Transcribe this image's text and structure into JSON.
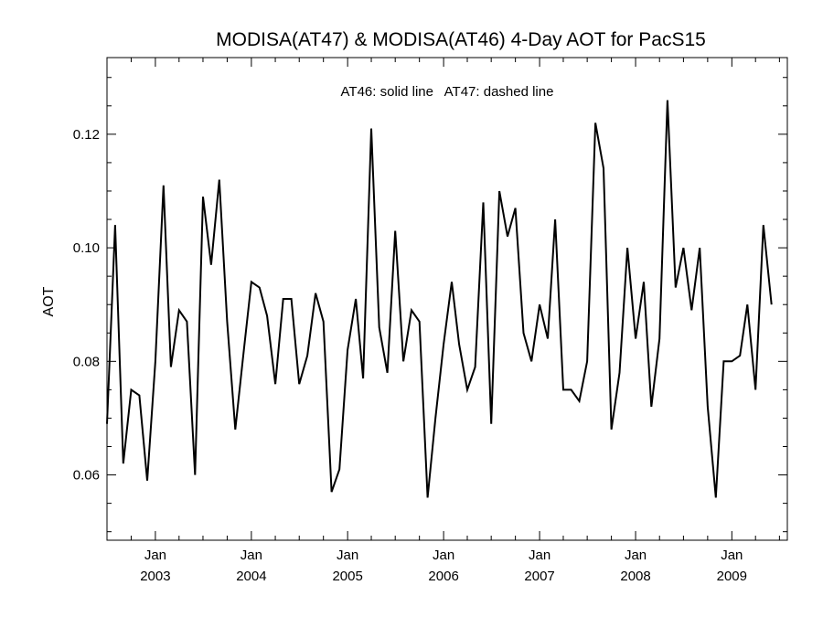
{
  "chart_data": {
    "type": "line",
    "title": "MODISA(AT47) & MODISA(AT46) 4-Day AOT for PacS15",
    "annotation": "AT46: solid line   AT47: dashed line",
    "xlabel": "",
    "ylabel": "AOT",
    "xlim": [
      "2002-07-01",
      "2009-07-31"
    ],
    "ylim": [
      0.0485,
      0.1335
    ],
    "yticks": [
      0.06,
      0.08,
      0.1,
      0.12
    ],
    "ytick_labels": [
      "0.06",
      "0.08",
      "0.10",
      "0.12"
    ],
    "xticks": [
      "2003-01-01",
      "2004-01-01",
      "2005-01-01",
      "2006-01-01",
      "2007-01-01",
      "2008-01-01",
      "2009-01-01"
    ],
    "xtick_labels": [
      {
        "month": "Jan",
        "year": "2003"
      },
      {
        "month": "Jan",
        "year": "2004"
      },
      {
        "month": "Jan",
        "year": "2005"
      },
      {
        "month": "Jan",
        "year": "2006"
      },
      {
        "month": "Jan",
        "year": "2007"
      },
      {
        "month": "Jan",
        "year": "2008"
      },
      {
        "month": "Jan",
        "year": "2009"
      }
    ],
    "grid": false,
    "series": [
      {
        "style": "solid",
        "color": "#000000",
        "points": [
          [
            "2002-07-01",
            0.069
          ],
          [
            "2002-08-01",
            0.104
          ],
          [
            "2002-09-01",
            0.062
          ],
          [
            "2002-10-01",
            0.075
          ],
          [
            "2002-11-01",
            0.074
          ],
          [
            "2002-12-01",
            0.059
          ],
          [
            "2003-01-01",
            0.08
          ],
          [
            "2003-02-01",
            0.111
          ],
          [
            "2003-03-01",
            0.079
          ],
          [
            "2003-04-01",
            0.089
          ],
          [
            "2003-05-01",
            0.087
          ],
          [
            "2003-06-01",
            0.06
          ],
          [
            "2003-07-01",
            0.109
          ],
          [
            "2003-08-01",
            0.097
          ],
          [
            "2003-09-01",
            0.112
          ],
          [
            "2003-10-01",
            0.087
          ],
          [
            "2003-11-01",
            0.068
          ],
          [
            "2003-12-01",
            0.081
          ],
          [
            "2004-01-01",
            0.094
          ],
          [
            "2004-02-01",
            0.093
          ],
          [
            "2004-03-01",
            0.088
          ],
          [
            "2004-04-01",
            0.076
          ],
          [
            "2004-05-01",
            0.091
          ],
          [
            "2004-06-01",
            0.091
          ],
          [
            "2004-07-01",
            0.076
          ],
          [
            "2004-08-01",
            0.081
          ],
          [
            "2004-09-01",
            0.092
          ],
          [
            "2004-10-01",
            0.087
          ],
          [
            "2004-11-01",
            0.057
          ],
          [
            "2004-12-01",
            0.061
          ],
          [
            "2005-01-01",
            0.082
          ],
          [
            "2005-02-01",
            0.091
          ],
          [
            "2005-03-01",
            0.077
          ],
          [
            "2005-04-01",
            0.121
          ],
          [
            "2005-05-01",
            0.086
          ],
          [
            "2005-06-01",
            0.078
          ],
          [
            "2005-07-01",
            0.103
          ],
          [
            "2005-08-01",
            0.08
          ],
          [
            "2005-09-01",
            0.089
          ],
          [
            "2005-10-01",
            0.087
          ],
          [
            "2005-11-01",
            0.056
          ],
          [
            "2005-12-01",
            0.07
          ],
          [
            "2006-01-01",
            0.083
          ],
          [
            "2006-02-01",
            0.094
          ],
          [
            "2006-03-01",
            0.083
          ],
          [
            "2006-04-01",
            0.075
          ],
          [
            "2006-05-01",
            0.079
          ],
          [
            "2006-06-01",
            0.108
          ],
          [
            "2006-07-01",
            0.069
          ],
          [
            "2006-08-01",
            0.11
          ],
          [
            "2006-09-01",
            0.102
          ],
          [
            "2006-10-01",
            0.107
          ],
          [
            "2006-11-01",
            0.085
          ],
          [
            "2006-12-01",
            0.08
          ],
          [
            "2007-01-01",
            0.09
          ],
          [
            "2007-02-01",
            0.084
          ],
          [
            "2007-03-01",
            0.105
          ],
          [
            "2007-04-01",
            0.075
          ],
          [
            "2007-05-01",
            0.075
          ],
          [
            "2007-06-01",
            0.073
          ],
          [
            "2007-07-01",
            0.08
          ],
          [
            "2007-08-01",
            0.122
          ],
          [
            "2007-09-01",
            0.114
          ],
          [
            "2007-10-01",
            0.068
          ],
          [
            "2007-11-01",
            0.078
          ],
          [
            "2007-12-01",
            0.1
          ],
          [
            "2008-01-01",
            0.084
          ],
          [
            "2008-02-01",
            0.094
          ],
          [
            "2008-03-01",
            0.072
          ],
          [
            "2008-04-01",
            0.084
          ],
          [
            "2008-05-01",
            0.126
          ],
          [
            "2008-06-01",
            0.093
          ],
          [
            "2008-07-01",
            0.1
          ],
          [
            "2008-08-01",
            0.089
          ],
          [
            "2008-09-01",
            0.1
          ],
          [
            "2008-10-01",
            0.072
          ],
          [
            "2008-11-01",
            0.056
          ],
          [
            "2008-12-01",
            0.08
          ],
          [
            "2009-01-01",
            0.08
          ],
          [
            "2009-02-01",
            0.081
          ],
          [
            "2009-03-01",
            0.09
          ],
          [
            "2009-04-01",
            0.075
          ],
          [
            "2009-05-01",
            0.104
          ],
          [
            "2009-06-01",
            0.09
          ]
        ]
      }
    ]
  }
}
